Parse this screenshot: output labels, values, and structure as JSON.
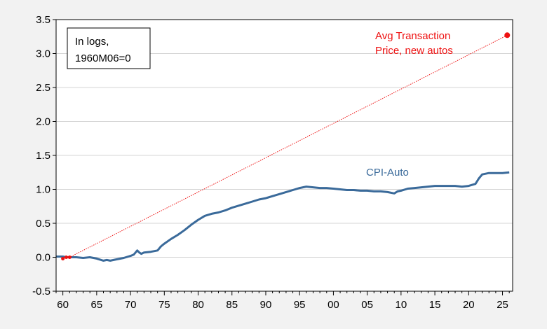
{
  "chart_data": {
    "type": "line",
    "title": "",
    "xlabel": "",
    "ylabel": "",
    "xlim": [
      1959,
      2026.5
    ],
    "ylim": [
      -0.5,
      3.5
    ],
    "x_ticks": [
      60,
      65,
      70,
      75,
      80,
      85,
      90,
      95,
      0,
      5,
      10,
      15,
      20,
      25
    ],
    "x_tick_labels": [
      "60",
      "65",
      "70",
      "75",
      "80",
      "85",
      "90",
      "95",
      "00",
      "05",
      "10",
      "15",
      "20",
      "25"
    ],
    "y_ticks": [
      -0.5,
      0.0,
      0.5,
      1.0,
      1.5,
      2.0,
      2.5,
      3.0,
      3.5
    ],
    "y_tick_labels": [
      "-0.5",
      "0.0",
      "0.5",
      "1.0",
      "1.5",
      "2.0",
      "2.5",
      "3.0",
      "3.5"
    ],
    "grid": true,
    "note_lines": [
      "In logs,",
      "1960M06=0"
    ],
    "series": [
      {
        "name": "CPI-Auto",
        "label": "CPI-Auto",
        "color": "#3a6a9a",
        "style": "solid",
        "x": [
          1959.0,
          1960.0,
          1960.5,
          1961.0,
          1962.0,
          1963.0,
          1964.0,
          1965.0,
          1966.0,
          1966.5,
          1967.0,
          1968.0,
          1969.0,
          1970.0,
          1970.5,
          1971.0,
          1971.3,
          1971.6,
          1972.0,
          1973.0,
          1974.0,
          1974.5,
          1975.0,
          1976.0,
          1977.0,
          1978.0,
          1979.0,
          1980.0,
          1981.0,
          1982.0,
          1983.0,
          1984.0,
          1985.0,
          1986.0,
          1987.0,
          1988.0,
          1989.0,
          1990.0,
          1991.0,
          1992.0,
          1993.0,
          1994.0,
          1995.0,
          1996.0,
          1997.0,
          1998.0,
          1999.0,
          2000.0,
          2001.0,
          2002.0,
          2003.0,
          2004.0,
          2005.0,
          2006.0,
          2007.0,
          2008.0,
          2009.0,
          2009.5,
          2010.0,
          2011.0,
          2012.0,
          2013.0,
          2014.0,
          2015.0,
          2016.0,
          2017.0,
          2018.0,
          2019.0,
          2020.0,
          2021.0,
          2021.5,
          2022.0,
          2023.0,
          2024.0,
          2025.0,
          2026.0
        ],
        "y": [
          0.01,
          0.01,
          0.0,
          0.0,
          0.0,
          -0.01,
          0.0,
          -0.02,
          -0.05,
          -0.04,
          -0.05,
          -0.03,
          -0.01,
          0.02,
          0.04,
          0.1,
          0.07,
          0.05,
          0.07,
          0.08,
          0.1,
          0.16,
          0.2,
          0.27,
          0.33,
          0.4,
          0.48,
          0.55,
          0.61,
          0.64,
          0.66,
          0.69,
          0.73,
          0.76,
          0.79,
          0.82,
          0.85,
          0.87,
          0.9,
          0.93,
          0.96,
          0.99,
          1.02,
          1.04,
          1.03,
          1.02,
          1.02,
          1.01,
          1.0,
          0.99,
          0.99,
          0.98,
          0.98,
          0.97,
          0.97,
          0.96,
          0.94,
          0.97,
          0.98,
          1.01,
          1.02,
          1.03,
          1.04,
          1.05,
          1.05,
          1.05,
          1.05,
          1.04,
          1.05,
          1.08,
          1.16,
          1.22,
          1.24,
          1.24,
          1.24,
          1.25
        ]
      },
      {
        "name": "Avg Transaction Price, new autos",
        "label_lines": [
          "Avg Transaction",
          "Price, new autos"
        ],
        "color": "#ee1111",
        "style": "dotted",
        "x": [
          1960.0,
          1960.5,
          1961.0,
          2025.7
        ],
        "y": [
          -0.02,
          0.0,
          0.0,
          3.27
        ]
      }
    ]
  }
}
